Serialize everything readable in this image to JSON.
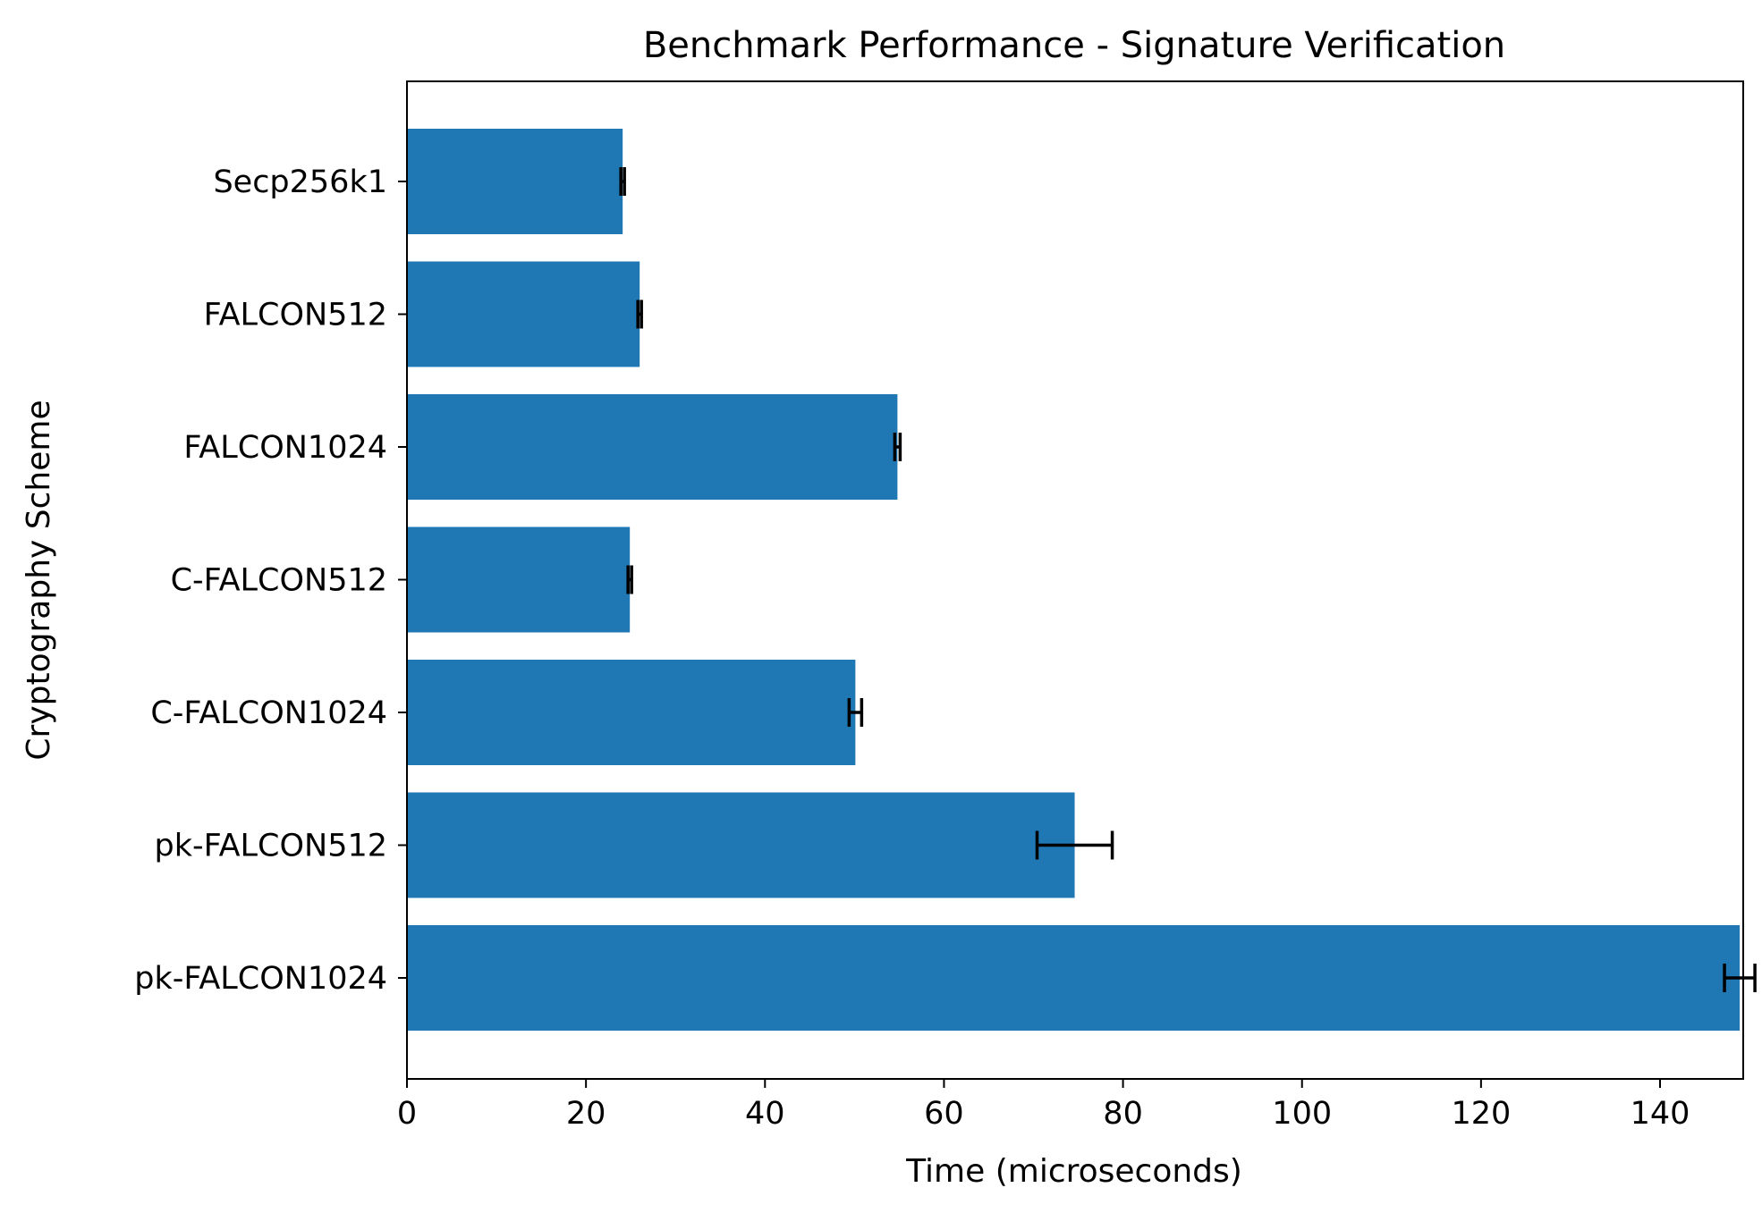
{
  "chart_data": {
    "type": "bar",
    "orientation": "horizontal",
    "title": "Benchmark Performance - Signature Verification",
    "xlabel": "Time (microseconds)",
    "ylabel": "Cryptography Scheme",
    "categories": [
      "Secp256k1",
      "FALCON512",
      "FALCON1024",
      "C-FALCON512",
      "C-FALCON1024",
      "pk-FALCON512",
      "pk-FALCON1024"
    ],
    "values": [
      24.1,
      26.0,
      54.8,
      24.9,
      50.1,
      74.6,
      148.9
    ],
    "errors": [
      0.2,
      0.2,
      0.3,
      0.2,
      0.7,
      4.2,
      1.7
    ],
    "xlim": [
      0,
      158
    ],
    "xticks": [
      0,
      20,
      40,
      60,
      80,
      100,
      120,
      140
    ],
    "grid": false,
    "bar_color": "#1f77b4",
    "error_color": "#000000"
  }
}
